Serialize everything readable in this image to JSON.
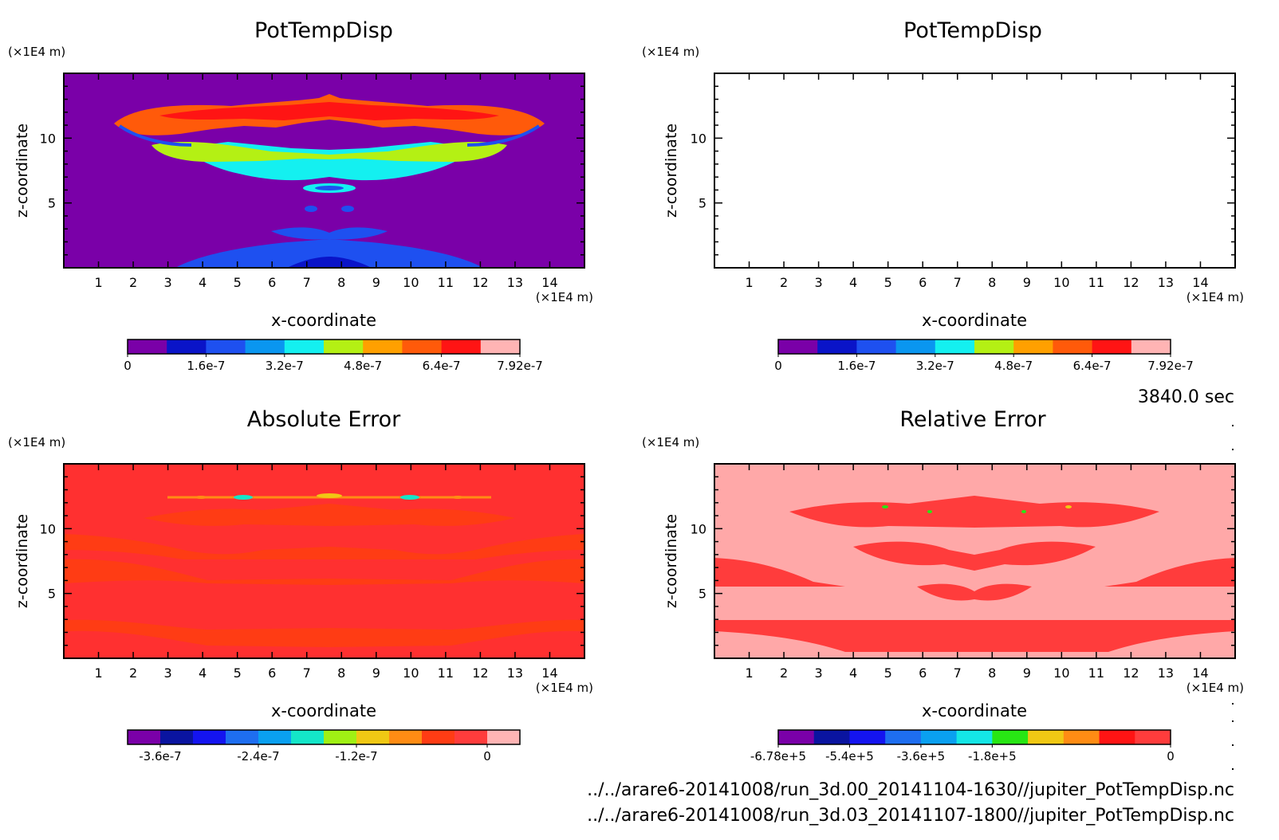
{
  "units": {
    "x": "(×1E4 m)",
    "z": "(×1E4 m)"
  },
  "time_label": "3840.0 sec",
  "files": [
    "../../arare6-20141008/run_3d.00_20141104-1630//jupiter_PotTempDisp.nc",
    "../../arare6-20141008/run_3d.03_20141107-1800//jupiter_PotTempDisp.nc"
  ],
  "chart_data": [
    {
      "type": "heatmap",
      "title": "PotTempDisp",
      "xlabel": "x-coordinate",
      "ylabel": "z-coordinate",
      "xlim": [
        0,
        15
      ],
      "ylim": [
        0,
        15
      ],
      "xticks": [
        "1",
        "2",
        "3",
        "4",
        "5",
        "6",
        "7",
        "8",
        "9",
        "10",
        "11",
        "12",
        "13",
        "14"
      ],
      "yticks": [
        "5",
        "10"
      ],
      "background_color": "#7a00a8",
      "colorbar": {
        "colors": [
          "#7a00a8",
          "#0a14c8",
          "#1e50f0",
          "#0a96f0",
          "#14f0f0",
          "#b4f014",
          "#ffa000",
          "#ff5a0a",
          "#ff1414",
          "#ffb4b4"
        ],
        "tick_labels": [
          "0",
          "1.6e-7",
          "3.2e-7",
          "4.8e-7",
          "6.4e-7",
          "7.92e-7"
        ]
      }
    },
    {
      "type": "heatmap",
      "title": "PotTempDisp",
      "xlabel": "x-coordinate",
      "ylabel": "z-coordinate",
      "xlim": [
        0,
        15
      ],
      "ylim": [
        0,
        15
      ],
      "xticks": [
        "1",
        "2",
        "3",
        "4",
        "5",
        "6",
        "7",
        "8",
        "9",
        "10",
        "11",
        "12",
        "13",
        "14"
      ],
      "yticks": [
        "5",
        "10"
      ],
      "background_color": "#7a00a8",
      "colorbar": {
        "colors": [
          "#7a00a8",
          "#0a14c8",
          "#1e50f0",
          "#0a96f0",
          "#14f0f0",
          "#b4f014",
          "#ffa000",
          "#ff5a0a",
          "#ff1414",
          "#ffb4b4"
        ],
        "tick_labels": [
          "0",
          "1.6e-7",
          "3.2e-7",
          "4.8e-7",
          "6.4e-7",
          "7.92e-7"
        ]
      }
    },
    {
      "type": "heatmap",
      "title": "Absolute Error",
      "xlabel": "x-coordinate",
      "ylabel": "z-coordinate",
      "xlim": [
        0,
        15
      ],
      "ylim": [
        0,
        15
      ],
      "xticks": [
        "1",
        "2",
        "3",
        "4",
        "5",
        "6",
        "7",
        "8",
        "9",
        "10",
        "11",
        "12",
        "13",
        "14"
      ],
      "yticks": [
        "5",
        "10"
      ],
      "background_color": "#ff3030",
      "colorbar": {
        "colors": [
          "#7a00a8",
          "#0a14a0",
          "#1414f0",
          "#1e6ef0",
          "#0aa0f0",
          "#14e6c8",
          "#a0f014",
          "#f0c814",
          "#ff8c14",
          "#ff3c14",
          "#ff3c3c",
          "#ffb4b4"
        ],
        "tick_labels": [
          "-3.6e-7",
          "-2.4e-7",
          "-1.2e-7",
          "0"
        ]
      }
    },
    {
      "type": "heatmap",
      "title": "Relative Error",
      "xlabel": "x-coordinate",
      "ylabel": "z-coordinate",
      "xlim": [
        0,
        15
      ],
      "ylim": [
        0,
        15
      ],
      "xticks": [
        "1",
        "2",
        "3",
        "4",
        "5",
        "6",
        "7",
        "8",
        "9",
        "10",
        "11",
        "12",
        "13",
        "14"
      ],
      "yticks": [
        "5",
        "10"
      ],
      "background_color": "#ffa8a8",
      "colorbar": {
        "colors": [
          "#7a00a8",
          "#0a14a0",
          "#1414f0",
          "#1e6ef0",
          "#0aa0f0",
          "#14e6e6",
          "#28e614",
          "#f0c814",
          "#ff8c14",
          "#ff1414",
          "#ff3c3c"
        ],
        "tick_labels": [
          "-6.78e+5",
          "-5.4e+5",
          "-3.6e+5",
          "-1.8e+5",
          "0"
        ]
      }
    }
  ]
}
